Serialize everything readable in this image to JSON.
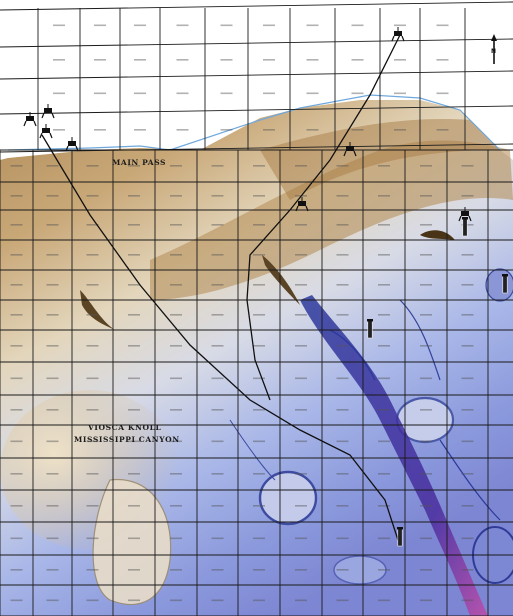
{
  "map": {
    "area_labels": {
      "main_pass": "MAIN PASS",
      "viosca_knoll": "VIOSCA KNOLL",
      "mississippi_canyon": "MISSISSIPPI CANYON"
    },
    "north_arrow": {
      "label": "N",
      "icon": "north-arrow-icon"
    },
    "colors": {
      "shelf": "#ffffff",
      "slope_upper": "#b89460",
      "slope_mid": "#d9c7a3",
      "deep": "#8aa2e0",
      "deepest": "#6c7fd0",
      "canyon": "#5a2fa0",
      "grid_line": "#1a1a1a",
      "pipeline": "#111111",
      "lease_outline": "#6fa8dc"
    },
    "structures": [
      {
        "id": "platform-1",
        "icon": "platform-icon",
        "label": ""
      },
      {
        "id": "platform-2",
        "icon": "platform-icon",
        "label": ""
      },
      {
        "id": "platform-3",
        "icon": "platform-icon",
        "label": ""
      },
      {
        "id": "platform-4",
        "icon": "platform-icon",
        "label": ""
      },
      {
        "id": "platform-5",
        "icon": "platform-icon",
        "label": ""
      },
      {
        "id": "platform-6",
        "icon": "platform-icon",
        "label": ""
      },
      {
        "id": "platform-7",
        "icon": "platform-icon",
        "label": ""
      },
      {
        "id": "platform-8",
        "icon": "platform-icon",
        "label": ""
      },
      {
        "id": "spar-1",
        "icon": "spar-icon",
        "label": ""
      },
      {
        "id": "spar-2",
        "icon": "spar-icon",
        "label": ""
      },
      {
        "id": "spar-3",
        "icon": "spar-icon",
        "label": ""
      },
      {
        "id": "spar-4",
        "icon": "spar-icon",
        "label": ""
      }
    ],
    "pipelines": [
      {
        "id": "pipeline-west",
        "label": ""
      },
      {
        "id": "pipeline-east",
        "label": ""
      }
    ]
  }
}
